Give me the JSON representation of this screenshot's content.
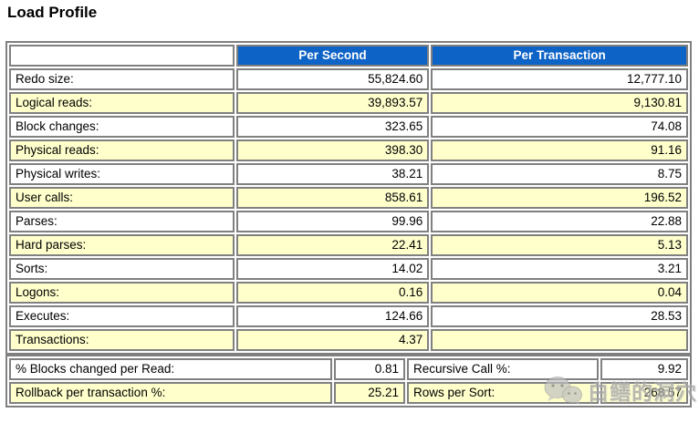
{
  "page": {
    "title": "Load Profile"
  },
  "table": {
    "headers": [
      "",
      "Per Second",
      "Per Transaction"
    ],
    "rows": [
      {
        "label": "Redo size:",
        "per_second": "55,824.60",
        "per_transaction": "12,777.10"
      },
      {
        "label": "Logical reads:",
        "per_second": "39,893.57",
        "per_transaction": "9,130.81"
      },
      {
        "label": "Block changes:",
        "per_second": "323.65",
        "per_transaction": "74.08"
      },
      {
        "label": "Physical reads:",
        "per_second": "398.30",
        "per_transaction": "91.16"
      },
      {
        "label": "Physical writes:",
        "per_second": "38.21",
        "per_transaction": "8.75"
      },
      {
        "label": "User calls:",
        "per_second": "858.61",
        "per_transaction": "196.52"
      },
      {
        "label": "Parses:",
        "per_second": "99.96",
        "per_transaction": "22.88"
      },
      {
        "label": "Hard parses:",
        "per_second": "22.41",
        "per_transaction": "5.13"
      },
      {
        "label": "Sorts:",
        "per_second": "14.02",
        "per_transaction": "3.21"
      },
      {
        "label": "Logons:",
        "per_second": "0.16",
        "per_transaction": "0.04"
      },
      {
        "label": "Executes:",
        "per_second": "124.66",
        "per_transaction": "28.53"
      },
      {
        "label": "Transactions:",
        "per_second": "4.37",
        "per_transaction": ""
      }
    ]
  },
  "summary": {
    "rows": [
      {
        "label1": "% Blocks changed per Read:",
        "value1": "0.81",
        "label2": "Recursive Call %:",
        "value2": "9.92"
      },
      {
        "label1": "Rollback per transaction %:",
        "value1": "25.21",
        "label2": "Rows per Sort:",
        "value2": "268.57"
      }
    ]
  },
  "watermark": {
    "text": "白鳝的洞穴",
    "icon": "wechat-icon"
  },
  "colors": {
    "header_bg": "#0d63c6",
    "header_text": "#ffffff",
    "alt_row_bg": "#ffffcc",
    "row_bg": "#ffffff",
    "cell_border": "#808080",
    "text": "#000000"
  }
}
